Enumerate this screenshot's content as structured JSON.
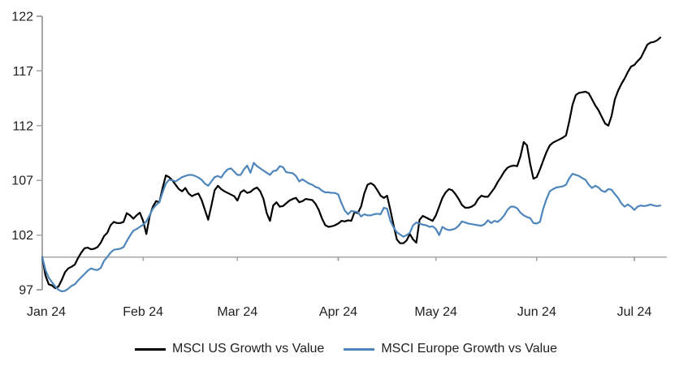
{
  "chart_data": {
    "type": "line",
    "title": "",
    "xlabel": "",
    "ylabel": "",
    "grid": "off",
    "legend_position": "bottom",
    "baseline": 100,
    "colors": {
      "axis": "#a6a6a6",
      "text": "#1f1f1f",
      "background": "#ffffff",
      "us_line": "#000000",
      "europe_line": "#4e86bb"
    },
    "x_axis": {
      "tick_labels": [
        "Jan 24",
        "Feb 24",
        "Mar 24",
        "Apr 24",
        "May 24",
        "Jun 24",
        "Jul 24"
      ],
      "tick_days": [
        0,
        31,
        60,
        91,
        121,
        152,
        182
      ]
    },
    "y_axis": {
      "ticks": [
        97,
        102,
        107,
        112,
        117,
        122
      ],
      "min": 97,
      "max": 122
    },
    "series": [
      {
        "name": "MSCI US Growth vs Value",
        "color": "#000000",
        "start_day": 0,
        "day_step": 1,
        "values": [
          100,
          98.3,
          97.5,
          97.4,
          97.15,
          97.3,
          97.9,
          98.6,
          98.95,
          99.1,
          99.3,
          99.9,
          100.4,
          100.8,
          100.85,
          100.7,
          100.75,
          100.9,
          101.3,
          101.9,
          102.2,
          102.9,
          103.2,
          103.1,
          103.1,
          103.2,
          104.0,
          103.8,
          103.5,
          103.8,
          104.05,
          103.3,
          102.1,
          103.7,
          104.6,
          105.1,
          105.0,
          106.3,
          107.45,
          107.3,
          107.0,
          106.6,
          106.2,
          106.0,
          106.3,
          105.8,
          105.55,
          105.7,
          105.8,
          105.2,
          104.3,
          103.4,
          104.7,
          106.1,
          106.5,
          106.2,
          106.0,
          105.85,
          105.7,
          105.55,
          105.15,
          105.9,
          106.1,
          105.85,
          105.95,
          106.2,
          106.35,
          106.0,
          105.3,
          104.0,
          103.3,
          104.7,
          105.0,
          104.6,
          104.65,
          104.9,
          105.15,
          105.3,
          105.4,
          105.0,
          105.1,
          105.3,
          105.25,
          105.2,
          104.85,
          104.3,
          103.5,
          102.9,
          102.75,
          102.8,
          102.9,
          103.05,
          103.3,
          103.25,
          103.35,
          103.3,
          104.1,
          104.0,
          104.6,
          105.8,
          106.6,
          106.75,
          106.55,
          106.1,
          105.6,
          105.4,
          105.6,
          104.3,
          102.9,
          101.6,
          101.25,
          101.25,
          101.5,
          102.1,
          101.6,
          101.3,
          103.4,
          103.75,
          103.6,
          103.45,
          103.3,
          103.8,
          104.6,
          105.4,
          105.9,
          106.2,
          106.1,
          105.75,
          105.3,
          104.75,
          104.5,
          104.5,
          104.6,
          104.8,
          105.3,
          105.6,
          105.5,
          105.5,
          105.9,
          106.3,
          106.85,
          107.3,
          107.8,
          108.15,
          108.3,
          108.35,
          108.3,
          109.2,
          110.5,
          110.2,
          108.5,
          107.15,
          107.3,
          108.0,
          108.8,
          109.6,
          110.2,
          110.45,
          110.6,
          110.75,
          110.9,
          111.1,
          112.4,
          113.9,
          114.8,
          115.0,
          115.05,
          115.1,
          114.95,
          114.4,
          113.85,
          113.4,
          112.8,
          112.2,
          112.0,
          112.9,
          114.4,
          115.2,
          115.8,
          116.3,
          116.9,
          117.4,
          117.55,
          117.9,
          118.2,
          118.8,
          119.4,
          119.6,
          119.65,
          119.8,
          120.05
        ]
      },
      {
        "name": "MSCI Europe Growth vs Value",
        "color": "#4e86bb",
        "start_day": 0,
        "day_step": 1,
        "values": [
          100,
          98.8,
          98.1,
          97.7,
          97.3,
          97.0,
          96.85,
          96.9,
          97.1,
          97.35,
          97.5,
          97.85,
          98.15,
          98.45,
          98.75,
          98.95,
          98.85,
          98.8,
          99.0,
          99.65,
          100.0,
          100.4,
          100.65,
          100.7,
          100.75,
          100.9,
          101.45,
          101.95,
          102.4,
          102.55,
          102.75,
          102.95,
          103.25,
          103.8,
          104.4,
          104.75,
          105.0,
          105.9,
          106.7,
          107.05,
          107.0,
          106.9,
          107.1,
          107.3,
          107.4,
          107.5,
          107.5,
          107.4,
          107.25,
          107.05,
          106.7,
          106.5,
          106.9,
          107.3,
          107.4,
          107.25,
          107.7,
          108.0,
          108.1,
          107.8,
          107.5,
          107.5,
          108.0,
          108.35,
          107.7,
          108.6,
          108.3,
          108.1,
          107.9,
          107.7,
          107.5,
          107.85,
          107.9,
          108.3,
          108.2,
          107.75,
          107.7,
          107.65,
          107.4,
          106.9,
          107.1,
          106.9,
          106.7,
          106.6,
          106.4,
          106.3,
          106.05,
          105.9,
          105.9,
          105.85,
          105.85,
          105.7,
          104.9,
          104.25,
          103.9,
          104.2,
          104.15,
          104.1,
          103.7,
          103.9,
          103.8,
          103.8,
          103.9,
          103.95,
          103.9,
          104.5,
          104.4,
          103.3,
          102.7,
          102.25,
          102.05,
          101.85,
          102.0,
          102.2,
          102.9,
          103.15,
          103.05,
          102.95,
          102.9,
          102.75,
          102.8,
          102.55,
          102.0,
          102.75,
          102.55,
          102.45,
          102.5,
          102.6,
          102.85,
          103.25,
          103.15,
          103.05,
          103.0,
          102.95,
          102.9,
          102.85,
          103.0,
          103.35,
          103.1,
          103.3,
          103.2,
          103.45,
          103.8,
          104.3,
          104.6,
          104.6,
          104.45,
          104.05,
          103.8,
          103.65,
          103.55,
          103.1,
          103.05,
          103.2,
          104.4,
          105.3,
          106.0,
          106.2,
          106.35,
          106.4,
          106.45,
          106.6,
          107.2,
          107.6,
          107.5,
          107.4,
          107.2,
          107.05,
          106.6,
          106.3,
          106.5,
          106.35,
          106.05,
          105.95,
          106.2,
          106.15,
          105.75,
          105.4,
          104.9,
          104.6,
          104.8,
          104.6,
          104.3,
          104.6,
          104.7,
          104.65,
          104.7,
          104.8,
          104.7,
          104.65,
          104.7
        ]
      }
    ]
  },
  "legend": {
    "us_label": "MSCI US Growth vs Value",
    "europe_label": "MSCI Europe Growth vs Value"
  }
}
